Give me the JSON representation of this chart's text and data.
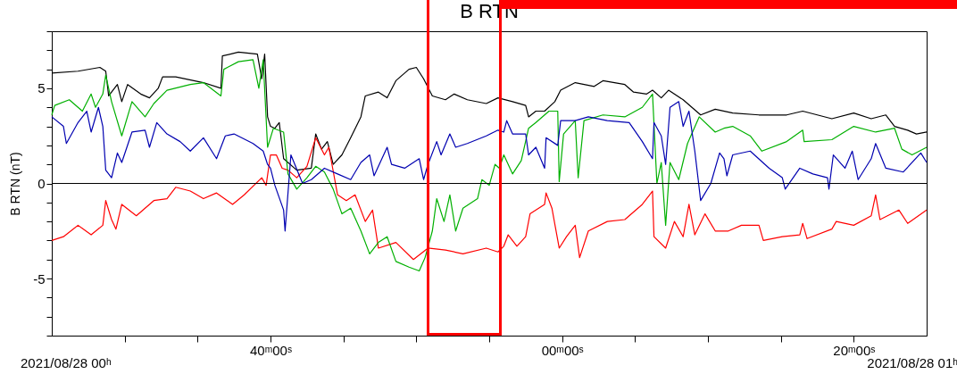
{
  "chart_data": {
    "type": "line",
    "title": "B RTN",
    "ylabel": "B RTN (nT)",
    "annotations": [
      "2021/08/28 00ʰ",
      "2021/08/28 01ʰ"
    ],
    "xlim": [
      "2021-08-28T00:25",
      "2021-08-28T01:25"
    ],
    "xticks": [
      {
        "value": "2021-08-28T00:30",
        "label": null
      },
      {
        "value": "2021-08-28T00:35",
        "label": null
      },
      {
        "value": "2021-08-28T00:40",
        "label": "40ᵐ00ˢ"
      },
      {
        "value": "2021-08-28T00:45",
        "label": null
      },
      {
        "value": "2021-08-28T00:50",
        "label": null
      },
      {
        "value": "2021-08-28T00:55",
        "label": null
      },
      {
        "value": "2021-08-28T01:00",
        "label": "00ᵐ00ˢ"
      },
      {
        "value": "2021-08-28T01:05",
        "label": null
      },
      {
        "value": "2021-08-28T01:10",
        "label": null
      },
      {
        "value": "2021-08-28T01:15",
        "label": null
      },
      {
        "value": "2021-08-28T01:20",
        "label": "20ᵐ00ˢ"
      }
    ],
    "ylim": [
      -8,
      8
    ],
    "yticks": [
      {
        "value": -8,
        "label": null
      },
      {
        "value": -7,
        "label": null
      },
      {
        "value": -6,
        "label": null
      },
      -5,
      {
        "value": -4,
        "label": null
      },
      {
        "value": -3,
        "label": null
      },
      {
        "value": -2,
        "label": null
      },
      {
        "value": -1,
        "label": null
      },
      0,
      {
        "value": 1,
        "label": null
      },
      {
        "value": 2,
        "label": null
      },
      {
        "value": 3,
        "label": null
      },
      {
        "value": 4,
        "label": null
      },
      5,
      {
        "value": 6,
        "label": null
      },
      {
        "value": 7,
        "label": null
      },
      {
        "value": 8,
        "label": null
      }
    ],
    "ref_lines": [
      {
        "axis": "y",
        "value": 0,
        "color": "#000000"
      }
    ],
    "series": [
      {
        "color": "#000000",
        "x": [
          "2021-08-28T00:25:00",
          "2021-08-28T00:26:48",
          "2021-08-28T00:28:18",
          "2021-08-28T00:28:42",
          "2021-08-28T00:28:54",
          "2021-08-28T00:29:30",
          "2021-08-28T00:29:48",
          "2021-08-28T00:30:12",
          "2021-08-28T00:31:06",
          "2021-08-28T00:31:42",
          "2021-08-28T00:32:18",
          "2021-08-28T00:32:36",
          "2021-08-28T00:33:30",
          "2021-08-28T00:35:24",
          "2021-08-28T00:36:36",
          "2021-08-28T00:36:42",
          "2021-08-28T00:37:48",
          "2021-08-28T00:39:06",
          "2021-08-28T00:39:24",
          "2021-08-28T00:39:36",
          "2021-08-28T00:39:48",
          "2021-08-28T00:40:00",
          "2021-08-28T00:40:18",
          "2021-08-28T00:40:36",
          "2021-08-28T00:40:54",
          "2021-08-28T00:41:48",
          "2021-08-28T00:42:48",
          "2021-08-28T00:43:06",
          "2021-08-28T00:43:30",
          "2021-08-28T00:43:54",
          "2021-08-28T00:44:18",
          "2021-08-28T00:44:54",
          "2021-08-28T00:45:30",
          "2021-08-28T00:46:12",
          "2021-08-28T00:46:30",
          "2021-08-28T00:47:24",
          "2021-08-28T00:48:00",
          "2021-08-28T00:48:36",
          "2021-08-28T00:49:30",
          "2021-08-28T00:50:00",
          "2021-08-28T00:50:30",
          "2021-08-28T00:51:06",
          "2021-08-28T00:52:00",
          "2021-08-28T00:52:36",
          "2021-08-28T00:53:30",
          "2021-08-28T00:54:48",
          "2021-08-28T00:55:36",
          "2021-08-28T00:56:36",
          "2021-08-28T00:57:30",
          "2021-08-28T00:57:42",
          "2021-08-28T00:58:12",
          "2021-08-28T00:58:48",
          "2021-08-28T00:59:30",
          "2021-08-28T00:59:54",
          "2021-08-28T01:00:54",
          "2021-08-28T01:02:12",
          "2021-08-28T01:02:48",
          "2021-08-28T01:04:18",
          "2021-08-28T01:04:54",
          "2021-08-28T01:05:48",
          "2021-08-28T01:06:12",
          "2021-08-28T01:06:48",
          "2021-08-28T01:07:18",
          "2021-08-28T01:08:18",
          "2021-08-28T01:09:30",
          "2021-08-28T01:10:30",
          "2021-08-28T01:11:42",
          "2021-08-28T01:13:30",
          "2021-08-28T01:15:24",
          "2021-08-28T01:16:30",
          "2021-08-28T01:18:30",
          "2021-08-28T01:20:00",
          "2021-08-28T01:21:12",
          "2021-08-28T01:22:12",
          "2021-08-28T01:22:48",
          "2021-08-28T01:23:42",
          "2021-08-28T01:24:18",
          "2021-08-28T01:25:00"
        ],
        "values": [
          5.8,
          5.9,
          6.1,
          5.9,
          4.6,
          5.2,
          4.3,
          5.2,
          4.7,
          4.5,
          5.0,
          5.6,
          5.6,
          5.3,
          5.0,
          6.7,
          6.9,
          6.8,
          5.5,
          6.8,
          3.5,
          3.0,
          2.9,
          3.2,
          1.3,
          0.7,
          0.8,
          2.6,
          1.8,
          2.2,
          1.0,
          1.5,
          2.4,
          3.5,
          4.6,
          4.8,
          4.5,
          5.4,
          6.0,
          6.1,
          5.5,
          4.6,
          4.4,
          4.7,
          4.4,
          4.2,
          4.5,
          4.3,
          4.1,
          3.5,
          3.8,
          3.8,
          4.3,
          4.9,
          5.3,
          5.1,
          5.4,
          5.2,
          4.8,
          4.7,
          4.9,
          4.5,
          4.9,
          4.4,
          3.6,
          3.9,
          3.7,
          3.6,
          3.6,
          3.8,
          3.4,
          3.7,
          3.4,
          3.6,
          3.0,
          2.8,
          2.6,
          2.7
        ]
      },
      {
        "color": "#ff0000",
        "x": [
          "2021-08-28T00:25:00",
          "2021-08-28T00:25:48",
          "2021-08-28T00:26:48",
          "2021-08-28T00:27:42",
          "2021-08-28T00:28:30",
          "2021-08-28T00:28:42",
          "2021-08-28T00:29:06",
          "2021-08-28T00:29:24",
          "2021-08-28T00:29:48",
          "2021-08-28T00:30:48",
          "2021-08-28T00:32:00",
          "2021-08-28T00:32:54",
          "2021-08-28T00:33:30",
          "2021-08-28T00:34:30",
          "2021-08-28T00:35:24",
          "2021-08-28T00:36:18",
          "2021-08-28T00:37:24",
          "2021-08-28T00:38:12",
          "2021-08-28T00:39:24",
          "2021-08-28T00:39:42",
          "2021-08-28T00:40:00",
          "2021-08-28T00:40:24",
          "2021-08-28T00:40:48",
          "2021-08-28T00:41:12",
          "2021-08-28T00:41:48",
          "2021-08-28T00:42:30",
          "2021-08-28T00:43:06",
          "2021-08-28T00:43:42",
          "2021-08-28T00:44:00",
          "2021-08-28T00:44:36",
          "2021-08-28T00:45:12",
          "2021-08-28T00:45:48",
          "2021-08-28T00:46:30",
          "2021-08-28T00:47:00",
          "2021-08-28T00:47:24",
          "2021-08-28T00:48:36",
          "2021-08-28T00:49:48",
          "2021-08-28T00:50:48",
          "2021-08-28T00:52:00",
          "2021-08-28T00:53:12",
          "2021-08-28T00:54:48",
          "2021-08-28T00:55:36",
          "2021-08-28T00:56:00",
          "2021-08-28T00:56:18",
          "2021-08-28T00:56:54",
          "2021-08-28T00:57:30",
          "2021-08-28T00:57:48",
          "2021-08-28T00:58:48",
          "2021-08-28T00:58:54",
          "2021-08-28T00:59:18",
          "2021-08-28T00:59:48",
          "2021-08-28T01:00:18",
          "2021-08-28T01:00:54",
          "2021-08-28T01:01:12",
          "2021-08-28T01:01:48",
          "2021-08-28T01:03:06",
          "2021-08-28T01:04:18",
          "2021-08-28T01:05:30",
          "2021-08-28T01:06:12",
          "2021-08-28T01:06:18",
          "2021-08-28T01:07:06",
          "2021-08-28T01:07:42",
          "2021-08-28T01:08:18",
          "2021-08-28T01:08:42",
          "2021-08-28T01:09:06",
          "2021-08-28T01:09:48",
          "2021-08-28T01:10:30",
          "2021-08-28T01:11:24",
          "2021-08-28T01:12:18",
          "2021-08-28T01:13:30",
          "2021-08-28T01:13:48",
          "2021-08-28T01:15:06",
          "2021-08-28T01:16:18",
          "2021-08-28T01:16:30",
          "2021-08-28T01:16:48",
          "2021-08-28T01:18:30",
          "2021-08-28T01:18:48",
          "2021-08-28T01:20:00",
          "2021-08-28T01:21:12",
          "2021-08-28T01:21:30",
          "2021-08-28T01:21:48",
          "2021-08-28T01:23:06",
          "2021-08-28T01:23:42",
          "2021-08-28T01:25:00"
        ],
        "values": [
          -3.0,
          -2.8,
          -2.2,
          -2.7,
          -2.2,
          -0.9,
          -1.9,
          -2.4,
          -1.1,
          -1.7,
          -0.9,
          -0.8,
          -0.2,
          -0.4,
          -0.8,
          -0.5,
          -1.1,
          -0.6,
          0.3,
          -0.1,
          1.5,
          1.5,
          0.8,
          0.7,
          0.3,
          0.9,
          2.4,
          1.5,
          1.9,
          -0.6,
          -0.9,
          -0.6,
          -2.0,
          -1.4,
          -3.4,
          -3.1,
          -4.0,
          -3.4,
          -3.5,
          -3.7,
          -3.4,
          -3.6,
          -3.3,
          -2.7,
          -3.3,
          -2.8,
          -1.6,
          -1.1,
          -0.5,
          -1.3,
          -3.4,
          -2.8,
          -2.2,
          -3.9,
          -2.5,
          -2.0,
          -1.9,
          -1.1,
          -0.4,
          -2.8,
          -3.4,
          -2.0,
          -2.8,
          -1.1,
          -2.7,
          -1.6,
          -2.5,
          -2.5,
          -2.2,
          -2.2,
          -3.0,
          -2.8,
          -2.7,
          -2.1,
          -2.9,
          -2.4,
          -2.0,
          -2.2,
          -1.7,
          -0.6,
          -1.9,
          -1.4,
          -2.1,
          -1.4
        ]
      },
      {
        "color": "#00b000",
        "x": [
          "2021-08-28T00:25:00",
          "2021-08-28T00:25:12",
          "2021-08-28T00:26:12",
          "2021-08-28T00:27:06",
          "2021-08-28T00:27:42",
          "2021-08-28T00:28:00",
          "2021-08-28T00:28:30",
          "2021-08-28T00:28:42",
          "2021-08-28T00:29:06",
          "2021-08-28T00:29:48",
          "2021-08-28T00:30:30",
          "2021-08-28T00:31:24",
          "2021-08-28T00:32:00",
          "2021-08-28T00:32:54",
          "2021-08-28T00:34:30",
          "2021-08-28T00:35:24",
          "2021-08-28T00:36:36",
          "2021-08-28T00:36:48",
          "2021-08-28T00:37:48",
          "2021-08-28T00:38:48",
          "2021-08-28T00:39:12",
          "2021-08-28T00:39:30",
          "2021-08-28T00:39:48",
          "2021-08-28T00:40:12",
          "2021-08-28T00:40:54",
          "2021-08-28T00:41:12",
          "2021-08-28T00:41:48",
          "2021-08-28T00:42:30",
          "2021-08-28T00:43:06",
          "2021-08-28T00:43:42",
          "2021-08-28T00:44:18",
          "2021-08-28T00:44:54",
          "2021-08-28T00:45:30",
          "2021-08-28T00:46:12",
          "2021-08-28T00:46:48",
          "2021-08-28T00:47:24",
          "2021-08-28T00:48:00",
          "2021-08-28T00:48:36",
          "2021-08-28T00:49:30",
          "2021-08-28T00:50:12",
          "2021-08-28T00:50:36",
          "2021-08-28T00:51:06",
          "2021-08-28T00:51:24",
          "2021-08-28T00:51:54",
          "2021-08-28T00:52:18",
          "2021-08-28T00:52:42",
          "2021-08-28T00:53:12",
          "2021-08-28T00:54:12",
          "2021-08-28T00:54:30",
          "2021-08-28T00:55:00",
          "2021-08-28T00:55:24",
          "2021-08-28T00:55:42",
          "2021-08-28T00:56:00",
          "2021-08-28T00:56:36",
          "2021-08-28T00:57:12",
          "2021-08-28T00:57:42",
          "2021-08-28T00:58:12",
          "2021-08-28T00:59:06",
          "2021-08-28T00:59:42",
          "2021-08-28T00:59:48",
          "2021-08-28T01:00:06",
          "2021-08-28T01:00:54",
          "2021-08-28T01:01:06",
          "2021-08-28T01:01:30",
          "2021-08-28T01:02:48",
          "2021-08-28T01:04:18",
          "2021-08-28T01:05:30",
          "2021-08-28T01:06:12",
          "2021-08-28T01:06:30",
          "2021-08-28T01:06:48",
          "2021-08-28T01:07:06",
          "2021-08-28T01:07:24",
          "2021-08-28T01:08:00",
          "2021-08-28T01:08:36",
          "2021-08-28T01:09:24",
          "2021-08-28T01:10:30",
          "2021-08-28T01:11:06",
          "2021-08-28T01:11:42",
          "2021-08-28T01:12:54",
          "2021-08-28T01:13:42",
          "2021-08-28T01:15:24",
          "2021-08-28T01:16:30",
          "2021-08-28T01:16:36",
          "2021-08-28T01:18:30",
          "2021-08-28T01:20:00",
          "2021-08-28T01:21:30",
          "2021-08-28T01:22:48",
          "2021-08-28T01:23:18",
          "2021-08-28T01:24:00",
          "2021-08-28T01:25:00"
        ],
        "values": [
          3.6,
          4.1,
          4.4,
          3.8,
          4.7,
          4.0,
          4.7,
          5.7,
          4.3,
          2.5,
          4.3,
          3.5,
          4.2,
          4.9,
          5.2,
          5.3,
          4.6,
          6.0,
          6.4,
          6.5,
          5.0,
          6.5,
          1.9,
          2.9,
          2.7,
          0.5,
          -0.3,
          0.3,
          0.9,
          0.6,
          -0.3,
          -1.6,
          -1.3,
          -2.5,
          -3.7,
          -3.1,
          -2.8,
          -4.1,
          -4.4,
          -4.6,
          -3.9,
          -2.5,
          -0.8,
          -2.0,
          -0.6,
          -2.5,
          -1.3,
          -0.8,
          0.2,
          -0.1,
          1.0,
          0.8,
          1.5,
          0.5,
          1.2,
          2.9,
          3.2,
          3.8,
          3.8,
          0.1,
          2.6,
          3.3,
          0.3,
          3.3,
          3.6,
          3.5,
          4.0,
          4.7,
          0.0,
          1.1,
          -2.2,
          1.1,
          0.2,
          2.1,
          3.5,
          2.7,
          2.9,
          3.0,
          2.5,
          1.7,
          2.2,
          2.8,
          2.2,
          2.3,
          3.0,
          2.7,
          2.9,
          1.8,
          1.5,
          1.9
        ]
      },
      {
        "color": "#0000b0",
        "x": [
          "2021-08-28T00:25:00",
          "2021-08-28T00:25:48",
          "2021-08-28T00:26:00",
          "2021-08-28T00:26:48",
          "2021-08-28T00:27:24",
          "2021-08-28T00:27:42",
          "2021-08-28T00:28:12",
          "2021-08-28T00:28:30",
          "2021-08-28T00:28:42",
          "2021-08-28T00:29:06",
          "2021-08-28T00:29:30",
          "2021-08-28T00:29:48",
          "2021-08-28T00:30:30",
          "2021-08-28T00:31:24",
          "2021-08-28T00:31:42",
          "2021-08-28T00:32:12",
          "2021-08-28T00:32:54",
          "2021-08-28T00:33:48",
          "2021-08-28T00:34:30",
          "2021-08-28T00:35:24",
          "2021-08-28T00:36:18",
          "2021-08-28T00:36:54",
          "2021-08-28T00:37:30",
          "2021-08-28T00:38:48",
          "2021-08-28T00:39:30",
          "2021-08-28T00:39:48",
          "2021-08-28T00:40:00",
          "2021-08-28T00:40:18",
          "2021-08-28T00:40:54",
          "2021-08-28T00:41:00",
          "2021-08-28T00:41:24",
          "2021-08-28T00:42:12",
          "2021-08-28T00:42:48",
          "2021-08-28T00:43:42",
          "2021-08-28T00:44:36",
          "2021-08-28T00:45:30",
          "2021-08-28T00:46:12",
          "2021-08-28T00:46:48",
          "2021-08-28T00:47:06",
          "2021-08-28T00:48:00",
          "2021-08-28T00:48:18",
          "2021-08-28T00:49:12",
          "2021-08-28T00:50:12",
          "2021-08-28T00:50:30",
          "2021-08-28T00:50:48",
          "2021-08-28T00:51:24",
          "2021-08-28T00:51:42",
          "2021-08-28T00:52:18",
          "2021-08-28T00:52:42",
          "2021-08-28T00:53:30",
          "2021-08-28T00:54:48",
          "2021-08-28T00:55:36",
          "2021-08-28T00:56:00",
          "2021-08-28T00:56:12",
          "2021-08-28T00:56:36",
          "2021-08-28T00:57:30",
          "2021-08-28T00:57:42",
          "2021-08-28T00:58:12",
          "2021-08-28T00:58:48",
          "2021-08-28T00:58:54",
          "2021-08-28T00:59:42",
          "2021-08-28T00:59:54",
          "2021-08-28T01:00:54",
          "2021-08-28T01:01:48",
          "2021-08-28T01:03:06",
          "2021-08-28T01:04:36",
          "2021-08-28T01:05:30",
          "2021-08-28T01:06:12",
          "2021-08-28T01:06:18",
          "2021-08-28T01:06:48",
          "2021-08-28T01:07:06",
          "2021-08-28T01:07:24",
          "2021-08-28T01:08:00",
          "2021-08-28T01:08:18",
          "2021-08-28T01:08:42",
          "2021-08-28T01:09:06",
          "2021-08-28T01:09:30",
          "2021-08-28T01:10:12",
          "2021-08-28T01:10:48",
          "2021-08-28T01:11:06",
          "2021-08-28T01:11:18",
          "2021-08-28T01:11:42",
          "2021-08-28T01:12:54",
          "2021-08-28T01:14:12",
          "2021-08-28T01:15:06",
          "2021-08-28T01:15:18",
          "2021-08-28T01:16:18",
          "2021-08-28T01:17:12",
          "2021-08-28T01:18:12",
          "2021-08-28T01:18:18",
          "2021-08-28T01:18:36",
          "2021-08-28T01:19:24",
          "2021-08-28T01:19:54",
          "2021-08-28T01:20:18",
          "2021-08-28T01:21:12",
          "2021-08-28T01:21:30",
          "2021-08-28T01:22:12",
          "2021-08-28T01:23:24",
          "2021-08-28T01:24:36",
          "2021-08-28T01:25:00"
        ],
        "values": [
          3.5,
          3.0,
          2.1,
          3.2,
          3.8,
          2.7,
          4.0,
          3.0,
          0.7,
          0.3,
          1.6,
          1.1,
          2.7,
          2.8,
          1.9,
          3.2,
          2.6,
          2.2,
          1.7,
          2.4,
          1.3,
          2.5,
          2.6,
          2.1,
          1.7,
          1.0,
          0.8,
          -0.1,
          -1.4,
          -2.5,
          1.5,
          0.0,
          0.2,
          0.8,
          0.5,
          0.2,
          1.1,
          1.5,
          0.4,
          1.9,
          1.0,
          0.8,
          1.3,
          0.2,
          1.0,
          2.2,
          1.5,
          2.6,
          1.9,
          2.1,
          2.5,
          2.8,
          2.7,
          3.3,
          2.6,
          2.6,
          1.5,
          1.9,
          0.8,
          2.4,
          2.0,
          3.3,
          3.3,
          3.5,
          3.3,
          3.2,
          2.2,
          1.3,
          3.2,
          2.5,
          1.0,
          4.0,
          4.3,
          3.0,
          3.8,
          1.7,
          -0.9,
          0.0,
          1.6,
          1.3,
          0.4,
          1.5,
          1.7,
          0.8,
          0.3,
          -0.3,
          0.8,
          0.5,
          0.3,
          -0.3,
          1.5,
          0.8,
          1.7,
          0.2,
          1.3,
          2.1,
          0.8,
          0.6,
          1.6,
          1.1
        ]
      }
    ]
  }
}
